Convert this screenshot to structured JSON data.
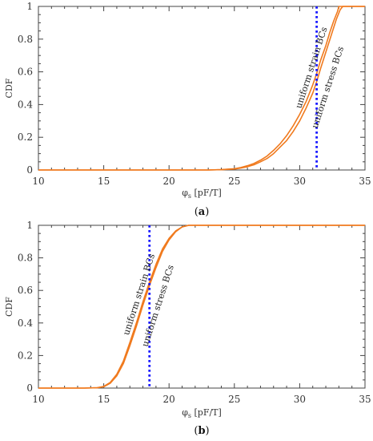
{
  "chart_data": [
    {
      "type": "line",
      "panel": "a",
      "xlabel": "φ_s [pF/T]",
      "ylabel": "CDF",
      "xlim": [
        10,
        35
      ],
      "ylim": [
        0,
        1
      ],
      "xticks": [
        10,
        15,
        20,
        25,
        30,
        35
      ],
      "yticks": [
        0,
        0.2,
        0.4,
        0.6,
        0.8,
        1
      ],
      "grid": false,
      "series": [
        {
          "color": "#f07a1e",
          "x": [
            10,
            20,
            23,
            24,
            25,
            25.5,
            26,
            26.5,
            27,
            27.5,
            28,
            28.5,
            29,
            29.5,
            30,
            30.5,
            31,
            31.3,
            31.6,
            32,
            32.4,
            32.8,
            33.1,
            33.3,
            35
          ],
          "y": [
            0,
            0,
            0,
            0.002,
            0.006,
            0.012,
            0.02,
            0.032,
            0.05,
            0.07,
            0.1,
            0.14,
            0.18,
            0.235,
            0.3,
            0.38,
            0.47,
            0.54,
            0.62,
            0.72,
            0.82,
            0.92,
            0.98,
            1,
            1
          ]
        },
        {
          "color": "#f07a1e",
          "x": [
            10,
            20,
            23,
            24,
            25,
            25.5,
            26,
            26.5,
            27,
            27.5,
            28,
            28.5,
            29,
            29.5,
            30,
            30.5,
            31,
            31.3,
            31.6,
            32,
            32.3,
            32.6,
            32.9,
            33,
            35
          ],
          "y": [
            0,
            0,
            0,
            0.002,
            0.008,
            0.015,
            0.026,
            0.04,
            0.06,
            0.085,
            0.12,
            0.16,
            0.21,
            0.27,
            0.34,
            0.42,
            0.52,
            0.59,
            0.67,
            0.76,
            0.84,
            0.91,
            0.97,
            1,
            1
          ]
        }
      ],
      "vline": {
        "x": 31.3,
        "color": "#1a1aff"
      },
      "annotations": [
        {
          "text": "uniform strain BCs",
          "x": 31.1,
          "y": 0.62
        },
        {
          "text": "uniform stress BCs",
          "x": 32.35,
          "y": 0.5
        }
      ],
      "panel_label": {
        "open": "(",
        "letter": "a",
        "close": ")"
      }
    },
    {
      "type": "line",
      "panel": "b",
      "xlabel": "φ_s [pF/T]",
      "ylabel": "CDF",
      "xlim": [
        10,
        35
      ],
      "ylim": [
        0,
        1
      ],
      "xticks": [
        10,
        15,
        20,
        25,
        30,
        35
      ],
      "yticks": [
        0,
        0.2,
        0.4,
        0.6,
        0.8,
        1
      ],
      "grid": false,
      "series": [
        {
          "color": "#f07a1e",
          "x": [
            10,
            13.5,
            14.5,
            15,
            15.5,
            16,
            16.5,
            17,
            17.5,
            18,
            18.5,
            19,
            19.5,
            20,
            20.5,
            21,
            21.5,
            21.8,
            35
          ],
          "y": [
            0,
            0,
            0.002,
            0.008,
            0.03,
            0.075,
            0.15,
            0.26,
            0.38,
            0.51,
            0.63,
            0.74,
            0.84,
            0.91,
            0.96,
            0.99,
            1,
            1,
            1
          ]
        },
        {
          "color": "#f07a1e",
          "x": [
            10,
            13.5,
            14.5,
            15,
            15.5,
            16,
            16.5,
            17,
            17.5,
            18,
            18.5,
            19,
            19.5,
            20,
            20.5,
            21,
            21.5,
            21.8,
            35
          ],
          "y": [
            0,
            0,
            0.002,
            0.01,
            0.035,
            0.085,
            0.165,
            0.28,
            0.4,
            0.53,
            0.65,
            0.76,
            0.855,
            0.92,
            0.965,
            0.99,
            1,
            1,
            1
          ]
        }
      ],
      "vline": {
        "x": 18.5,
        "color": "#1a1aff"
      },
      "annotations": [
        {
          "text": "uniform strain BCs",
          "x": 17.9,
          "y": 0.57
        },
        {
          "text": "uniform stress BCs",
          "x": 19.35,
          "y": 0.5
        }
      ],
      "panel_label": {
        "open": "(",
        "letter": "b",
        "close": ")"
      }
    }
  ]
}
